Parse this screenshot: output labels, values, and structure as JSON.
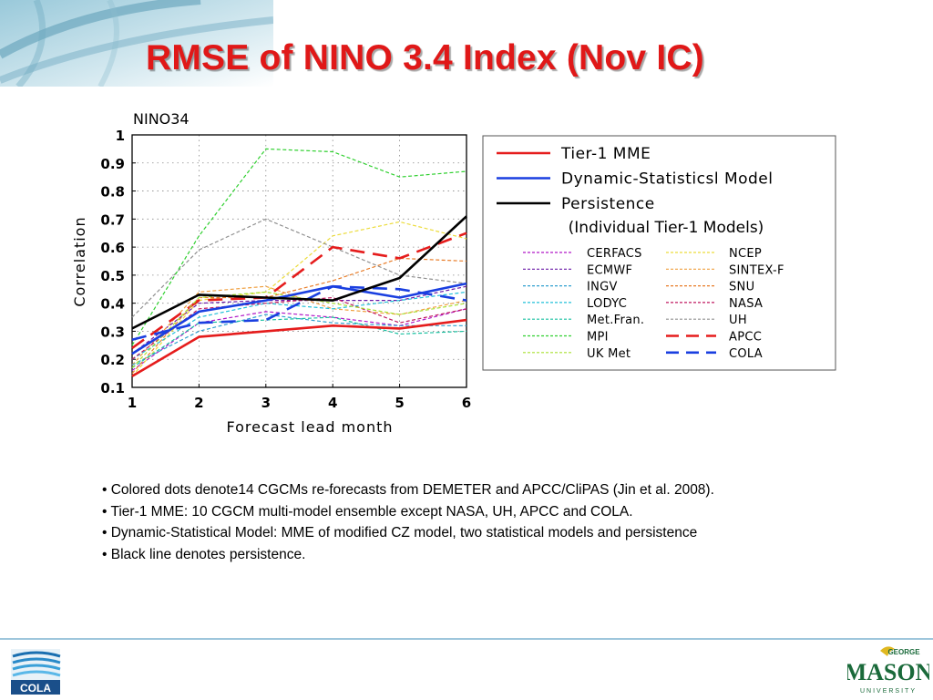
{
  "slide": {
    "title": "RMSE of NINO 3.4 Index (Nov IC)",
    "bullets": [
      "• Colored dots denote14 CGCMs re-forecasts from DEMETER and APCC/CliPAS (Jin et al. 2008).",
      "• Tier-1 MME: 10 CGCM multi-model ensemble except NASA, UH, APCC and COLA.",
      "• Dynamic-Statistical Model: MME of modified CZ model, two statistical models and persistence",
      "• Black line denotes persistence."
    ],
    "logos": {
      "left_text": "COLA",
      "right_top": "GEORGE",
      "right_main": "MASON",
      "right_bottom": "UNIVERSITY"
    }
  },
  "chart_data": {
    "type": "line",
    "title": "NINO34",
    "xlabel": "Forecast lead month",
    "ylabel": "Correlation",
    "x": [
      1,
      2,
      3,
      4,
      5,
      6
    ],
    "xlim": [
      1,
      6
    ],
    "ylim": [
      0.1,
      1.0
    ],
    "yticks": [
      "0.1",
      "0.2",
      "0.3",
      "0.4",
      "0.5",
      "0.6",
      "0.7",
      "0.8",
      "0.9",
      "1"
    ],
    "xticks": [
      "1",
      "2",
      "3",
      "4",
      "5",
      "6"
    ],
    "grid": true,
    "legend_placement": "right",
    "legend_group_heading": "(Individual Tier-1 Models)",
    "series": [
      {
        "name": "Tier-1 MME",
        "values": [
          0.14,
          0.28,
          0.3,
          0.32,
          0.31,
          0.34
        ],
        "color": "#e51c1c",
        "style": "solid-thick",
        "group": "main"
      },
      {
        "name": "Dynamic-Statisticsl Model",
        "values": [
          0.22,
          0.37,
          0.41,
          0.46,
          0.42,
          0.47
        ],
        "color": "#1a3fe0",
        "style": "solid-thick",
        "group": "main"
      },
      {
        "name": "Persistence",
        "values": [
          0.31,
          0.43,
          0.42,
          0.41,
          0.49,
          0.71
        ],
        "color": "#000000",
        "style": "solid-thick",
        "group": "main"
      },
      {
        "name": "CERFACS",
        "values": [
          0.16,
          0.33,
          0.37,
          0.35,
          0.32,
          0.38
        ],
        "color": "#b018c8",
        "style": "dashed",
        "group": "individual"
      },
      {
        "name": "NCEP",
        "values": [
          0.14,
          0.41,
          0.44,
          0.64,
          0.69,
          0.63
        ],
        "color": "#ecdc3c",
        "style": "dashed",
        "group": "individual"
      },
      {
        "name": "ECMWF",
        "values": [
          0.22,
          0.4,
          0.41,
          0.41,
          0.41,
          0.46
        ],
        "color": "#6a1aa8",
        "style": "dashed",
        "group": "individual"
      },
      {
        "name": "SINTEX-F",
        "values": [
          0.18,
          0.44,
          0.46,
          0.38,
          0.36,
          0.41
        ],
        "color": "#f0a040",
        "style": "dashed",
        "group": "individual"
      },
      {
        "name": "INGV",
        "values": [
          0.18,
          0.3,
          0.36,
          0.33,
          0.32,
          0.32
        ],
        "color": "#30a0d0",
        "style": "dashed",
        "group": "individual"
      },
      {
        "name": "SNU",
        "values": [
          0.15,
          0.42,
          0.42,
          0.48,
          0.56,
          0.55
        ],
        "color": "#e87c28",
        "style": "dashed",
        "group": "individual"
      },
      {
        "name": "LODYC",
        "values": [
          0.2,
          0.35,
          0.4,
          0.38,
          0.41,
          0.44
        ],
        "color": "#20c0d8",
        "style": "dashed",
        "group": "individual"
      },
      {
        "name": "NASA",
        "values": [
          0.2,
          0.38,
          0.4,
          0.42,
          0.33,
          0.38
        ],
        "color": "#c01860",
        "style": "dashed",
        "group": "individual"
      },
      {
        "name": "Met.Fran.",
        "values": [
          0.17,
          0.33,
          0.34,
          0.35,
          0.29,
          0.3
        ],
        "color": "#18c0a0",
        "style": "dashed",
        "group": "individual"
      },
      {
        "name": "UH",
        "values": [
          0.35,
          0.59,
          0.7,
          0.6,
          0.5,
          0.47
        ],
        "color": "#909090",
        "style": "dashed",
        "group": "individual"
      },
      {
        "name": "MPI",
        "values": [
          0.25,
          0.64,
          0.95,
          0.94,
          0.85,
          0.87
        ],
        "color": "#30d030",
        "style": "dashed",
        "group": "individual"
      },
      {
        "name": "APCC",
        "values": [
          0.24,
          0.41,
          0.42,
          0.6,
          0.56,
          0.65
        ],
        "color": "#e51c1c",
        "style": "longdash-thick",
        "group": "individual"
      },
      {
        "name": "UK Met",
        "values": [
          0.17,
          0.42,
          0.44,
          0.4,
          0.36,
          0.4
        ],
        "color": "#a8e030",
        "style": "dashed",
        "group": "individual"
      },
      {
        "name": "COLA",
        "values": [
          0.27,
          0.33,
          0.34,
          0.46,
          0.45,
          0.41
        ],
        "color": "#1a3fe0",
        "style": "longdash-thick",
        "group": "individual"
      }
    ]
  }
}
